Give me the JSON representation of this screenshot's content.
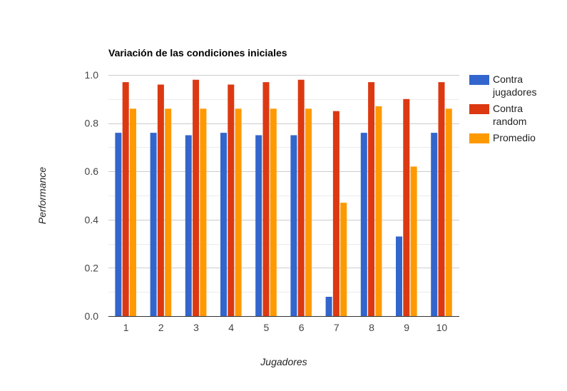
{
  "chart_data": {
    "type": "bar",
    "title": "Variación de las condiciones iniciales",
    "xlabel": "Jugadores",
    "ylabel": "Performance",
    "categories": [
      "1",
      "2",
      "3",
      "4",
      "5",
      "6",
      "7",
      "8",
      "9",
      "10"
    ],
    "series": [
      {
        "name": "Contra jugadores",
        "name_lines": [
          "Contra",
          "jugadores"
        ],
        "color": "#3366cc",
        "values": [
          0.76,
          0.76,
          0.75,
          0.76,
          0.75,
          0.75,
          0.08,
          0.76,
          0.33,
          0.76
        ]
      },
      {
        "name": "Contra random",
        "name_lines": [
          "Contra",
          "random"
        ],
        "color": "#dc3912",
        "values": [
          0.97,
          0.96,
          0.98,
          0.96,
          0.97,
          0.98,
          0.85,
          0.97,
          0.9,
          0.97
        ]
      },
      {
        "name": "Promedio",
        "name_lines": [
          "Promedio"
        ],
        "color": "#ff9900",
        "values": [
          0.86,
          0.86,
          0.86,
          0.86,
          0.86,
          0.86,
          0.47,
          0.87,
          0.62,
          0.86
        ]
      }
    ],
    "ylim": [
      0,
      1.0
    ],
    "yticks": [
      "0.0",
      "0.2",
      "0.4",
      "0.6",
      "0.8",
      "1.0"
    ],
    "grid": true,
    "legend_position": "right"
  }
}
